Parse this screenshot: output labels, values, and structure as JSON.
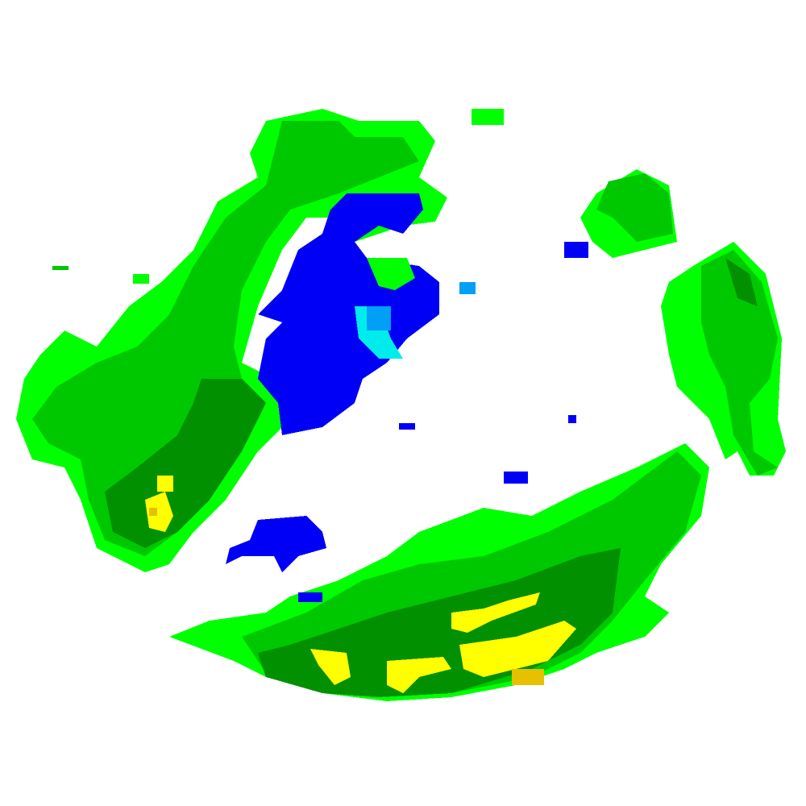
{
  "radar": {
    "palette": {
      "cyan": "#00ECEC",
      "light_blue": "#01A0F6",
      "blue": "#0000F6",
      "bright_green": "#00FF00",
      "green": "#00C800",
      "dark_green": "#009000",
      "yellow": "#FFFF00",
      "gold": "#E7C000"
    }
  }
}
